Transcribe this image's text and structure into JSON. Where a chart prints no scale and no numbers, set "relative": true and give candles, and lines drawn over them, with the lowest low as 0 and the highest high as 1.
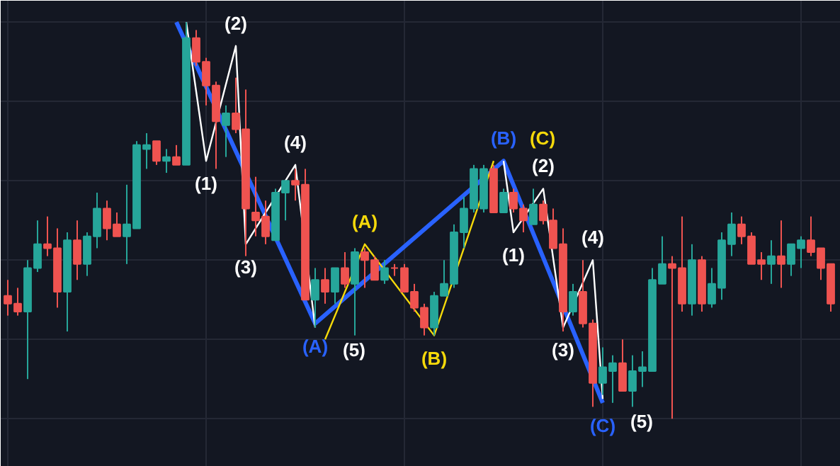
{
  "chart_data": {
    "type": "candlestick",
    "relative": true,
    "tick_labels": false,
    "grid": true,
    "categories": [
      null,
      null,
      null,
      null,
      null,
      null,
      null,
      null,
      null,
      null,
      null,
      null,
      null,
      null,
      null,
      null,
      null,
      null,
      null,
      null,
      null,
      null,
      null,
      null,
      null,
      null,
      null,
      null,
      null,
      null,
      null,
      null,
      null,
      null,
      null,
      null,
      null,
      null,
      null,
      null,
      null,
      null,
      null,
      null,
      null,
      null,
      null,
      null,
      null,
      null,
      null,
      null,
      null,
      null,
      null,
      null,
      null,
      null,
      null,
      null,
      null,
      null,
      null,
      null,
      null,
      null,
      null,
      null,
      null,
      null,
      null,
      null,
      null,
      null,
      null,
      null,
      null,
      null,
      null,
      null,
      null,
      null,
      null,
      null
    ],
    "colors": [
      "#ef5350",
      "#ef5350",
      "#26a69a",
      "#26a69a",
      "#ef5350",
      "#ef5350",
      "#26a69a",
      "#ef5350",
      "#26a69a",
      "#26a69a",
      "#ef5350",
      "#ef5350",
      "#26a69a",
      "#26a69a",
      "#26a69a",
      "#ef5350",
      "#26a69a",
      "#ef5350",
      "#26a69a",
      "#ef5350",
      "#ef5350",
      "#ef5350",
      "#26a69a",
      "#ef5350",
      "#ef5350",
      "#ef5350",
      "#ef5350",
      "#26a69a",
      "#26a69a",
      "#ef5350",
      "#ef5350",
      "#26a69a",
      "#ef5350",
      "#26a69a",
      "#ef5350",
      "#26a69a",
      "#ef5350",
      "#ef5350",
      "#26a69a",
      "#ef5350",
      "#ef5350",
      "#ef5350",
      "#ef5350",
      "#26a69a",
      "#26a69a",
      "#26a69a",
      "#26a69a",
      "#26a69a",
      "#26a69a",
      "#ef5350",
      "#26a69a",
      "#ef5350",
      "#ef5350",
      "#26a69a",
      "#ef5350",
      "#ef5350",
      "#ef5350",
      "#26a69a",
      "#ef5350",
      "#ef5350",
      "#26a69a",
      "#26a69a",
      "#ef5350",
      "#26a69a",
      "#26a69a",
      "#26a69a",
      "#26a69a",
      "#ef5350",
      "#ef5350",
      "#26a69a",
      "#ef5350",
      "#26a69a",
      "#26a69a",
      "#26a69a",
      "#ef5350",
      "#ef5350",
      "#ef5350",
      "#26a69a",
      "#ef5350",
      "#26a69a",
      "#26a69a",
      "#ef5350",
      "#ef5350",
      "#ef5350"
    ],
    "ohlc": [
      [
        0.31,
        0.35,
        0.26,
        0.29
      ],
      [
        0.29,
        0.33,
        0.26,
        0.27
      ],
      [
        0.27,
        0.4,
        0.1,
        0.38
      ],
      [
        0.38,
        0.5,
        0.37,
        0.44
      ],
      [
        0.44,
        0.51,
        0.41,
        0.43
      ],
      [
        0.43,
        0.48,
        0.28,
        0.32
      ],
      [
        0.32,
        0.47,
        0.22,
        0.45
      ],
      [
        0.45,
        0.5,
        0.35,
        0.39
      ],
      [
        0.39,
        0.47,
        0.36,
        0.46
      ],
      [
        0.46,
        0.57,
        0.43,
        0.53
      ],
      [
        0.53,
        0.55,
        0.45,
        0.48
      ],
      [
        0.49,
        0.52,
        0.46,
        0.46
      ],
      [
        0.46,
        0.59,
        0.39,
        0.49
      ],
      [
        0.48,
        0.7,
        0.48,
        0.69
      ],
      [
        0.68,
        0.72,
        0.63,
        0.69
      ],
      [
        0.7,
        0.7,
        0.64,
        0.65
      ],
      [
        0.65,
        0.68,
        0.62,
        0.66
      ],
      [
        0.66,
        0.69,
        0.64,
        0.64
      ],
      [
        0.64,
        1.0,
        0.64,
        0.96
      ],
      [
        0.96,
        0.98,
        0.89,
        0.9
      ],
      [
        0.9,
        0.91,
        0.79,
        0.84
      ],
      [
        0.84,
        0.85,
        0.63,
        0.75
      ],
      [
        0.74,
        0.79,
        0.66,
        0.77
      ],
      [
        0.77,
        0.86,
        0.72,
        0.73
      ],
      [
        0.73,
        0.83,
        0.41,
        0.53
      ],
      [
        0.52,
        0.61,
        0.46,
        0.5
      ],
      [
        0.51,
        0.55,
        0.44,
        0.46
      ],
      [
        0.45,
        0.58,
        0.45,
        0.57
      ],
      [
        0.57,
        0.6,
        0.5,
        0.6
      ],
      [
        0.6,
        0.63,
        0.55,
        0.59
      ],
      [
        0.59,
        0.63,
        0.3,
        0.3
      ],
      [
        0.3,
        0.38,
        0.23,
        0.35
      ],
      [
        0.35,
        0.38,
        0.29,
        0.32
      ],
      [
        0.32,
        0.38,
        0.29,
        0.38
      ],
      [
        0.38,
        0.42,
        0.33,
        0.34
      ],
      [
        0.34,
        0.43,
        0.21,
        0.42
      ],
      [
        0.42,
        0.43,
        0.33,
        0.4
      ],
      [
        0.4,
        0.41,
        0.35,
        0.35
      ],
      [
        0.35,
        0.4,
        0.34,
        0.38
      ],
      [
        0.38,
        0.39,
        0.36,
        0.38
      ],
      [
        0.38,
        0.39,
        0.32,
        0.32
      ],
      [
        0.32,
        0.34,
        0.27,
        0.28
      ],
      [
        0.28,
        0.29,
        0.21,
        0.23
      ],
      [
        0.23,
        0.32,
        0.21,
        0.31
      ],
      [
        0.31,
        0.4,
        0.31,
        0.34
      ],
      [
        0.34,
        0.49,
        0.33,
        0.47
      ],
      [
        0.47,
        0.56,
        0.43,
        0.53
      ],
      [
        0.53,
        0.64,
        0.52,
        0.63
      ],
      [
        0.53,
        0.64,
        0.52,
        0.63
      ],
      [
        0.63,
        0.64,
        0.52,
        0.52
      ],
      [
        0.52,
        0.58,
        0.52,
        0.57
      ],
      [
        0.57,
        0.58,
        0.52,
        0.53
      ],
      [
        0.53,
        0.54,
        0.47,
        0.5
      ],
      [
        0.49,
        0.58,
        0.49,
        0.54
      ],
      [
        0.54,
        0.55,
        0.49,
        0.5
      ],
      [
        0.5,
        0.53,
        0.43,
        0.43
      ],
      [
        0.44,
        0.48,
        0.22,
        0.27
      ],
      [
        0.27,
        0.34,
        0.26,
        0.32
      ],
      [
        0.32,
        0.4,
        0.23,
        0.24
      ],
      [
        0.24,
        0.25,
        0.03,
        0.09
      ],
      [
        0.09,
        0.18,
        0.06,
        0.13
      ],
      [
        0.12,
        0.16,
        0.04,
        0.14
      ],
      [
        0.14,
        0.2,
        0.07,
        0.07
      ],
      [
        0.07,
        0.16,
        0.03,
        0.12
      ],
      [
        0.12,
        0.17,
        0.08,
        0.13
      ],
      [
        0.12,
        0.38,
        0.12,
        0.35
      ],
      [
        0.34,
        0.46,
        0.34,
        0.39
      ],
      [
        0.39,
        0.41,
        0.0,
        0.38
      ],
      [
        0.38,
        0.51,
        0.27,
        0.29
      ],
      [
        0.29,
        0.44,
        0.26,
        0.4
      ],
      [
        0.4,
        0.41,
        0.27,
        0.29
      ],
      [
        0.29,
        0.38,
        0.28,
        0.34
      ],
      [
        0.33,
        0.47,
        0.3,
        0.45
      ],
      [
        0.44,
        0.52,
        0.41,
        0.49
      ],
      [
        0.49,
        0.51,
        0.44,
        0.46
      ],
      [
        0.46,
        0.47,
        0.39,
        0.39
      ],
      [
        0.4,
        0.42,
        0.35,
        0.39
      ],
      [
        0.39,
        0.45,
        0.34,
        0.41
      ],
      [
        0.41,
        0.5,
        0.33,
        0.39
      ],
      [
        0.39,
        0.44,
        0.36,
        0.44
      ],
      [
        0.43,
        0.46,
        0.38,
        0.45
      ],
      [
        0.45,
        0.51,
        0.41,
        0.42
      ],
      [
        0.43,
        0.43,
        0.35,
        0.38
      ],
      [
        0.39,
        0.39,
        0.27,
        0.29
      ]
    ],
    "series": [
      {
        "type": "line",
        "color": "#2962ff",
        "values": [
          null,
          null,
          null,
          null,
          null,
          null,
          null,
          null,
          null,
          null,
          null,
          null,
          null,
          null,
          null,
          null,
          null,
          1.0,
          null,
          null,
          null,
          null,
          null,
          null,
          null,
          null,
          null,
          null,
          null,
          null,
          null,
          0.24,
          null,
          null,
          null,
          null,
          null,
          null,
          null,
          null,
          null,
          null,
          null,
          null,
          null,
          null,
          null,
          null,
          null,
          null,
          0.65,
          null,
          null,
          null,
          null,
          null,
          null,
          null,
          null,
          null,
          0.04,
          null,
          null,
          null,
          null,
          null,
          null,
          null,
          null,
          null,
          null,
          null,
          null,
          null,
          null,
          null,
          null,
          null,
          null,
          null,
          null,
          null,
          null,
          null
        ]
      },
      {
        "type": "line",
        "color": "#ffffff",
        "values": [
          null,
          null,
          null,
          null,
          null,
          null,
          null,
          null,
          null,
          null,
          null,
          null,
          null,
          null,
          null,
          null,
          null,
          null,
          1.0,
          null,
          0.65,
          null,
          null,
          0.94,
          0.44,
          null,
          null,
          null,
          null,
          0.64,
          null,
          0.23,
          null,
          null,
          null,
          null,
          null,
          null,
          null,
          null,
          null,
          null,
          null,
          null,
          null,
          null,
          null,
          null,
          null,
          null,
          null,
          null,
          null,
          null,
          null,
          null,
          null,
          null,
          null,
          null,
          null,
          null,
          null,
          null,
          null,
          null,
          null,
          null,
          null,
          null,
          null,
          null,
          null,
          null,
          null,
          null,
          null,
          null,
          null,
          null,
          null,
          null,
          null,
          null
        ]
      },
      {
        "type": "line",
        "color": "#f5d90a",
        "values": [
          null,
          null,
          null,
          null,
          null,
          null,
          null,
          null,
          null,
          null,
          null,
          null,
          null,
          null,
          null,
          null,
          null,
          null,
          null,
          null,
          null,
          null,
          null,
          null,
          null,
          null,
          null,
          null,
          null,
          null,
          null,
          null,
          0.2,
          null,
          null,
          null,
          0.44,
          null,
          null,
          null,
          null,
          null,
          null,
          0.21,
          null,
          null,
          null,
          null,
          null,
          0.65,
          null,
          null,
          null,
          null,
          null,
          null,
          null,
          null,
          null,
          null,
          null,
          null,
          null,
          null,
          null,
          null,
          null,
          null,
          null,
          null,
          null,
          null,
          null,
          null,
          null,
          null,
          null,
          null,
          null,
          null,
          null,
          null,
          null,
          null
        ]
      },
      {
        "type": "line",
        "color": "#ffffff",
        "values": [
          null,
          null,
          null,
          null,
          null,
          null,
          null,
          null,
          null,
          null,
          null,
          null,
          null,
          null,
          null,
          null,
          null,
          null,
          null,
          null,
          null,
          null,
          null,
          null,
          null,
          null,
          null,
          null,
          null,
          null,
          null,
          null,
          null,
          null,
          null,
          null,
          null,
          null,
          null,
          null,
          null,
          null,
          null,
          null,
          null,
          null,
          null,
          null,
          null,
          null,
          0.65,
          0.47,
          null,
          null,
          0.58,
          null,
          0.23,
          null,
          null,
          0.4,
          0.05,
          null,
          null,
          null,
          null,
          null,
          null,
          null,
          null,
          null,
          null,
          null,
          null,
          null,
          null,
          null,
          null,
          null,
          null,
          null,
          null,
          null,
          null,
          null
        ]
      }
    ],
    "annotations": [
      "(A)",
      "(B)",
      "(C)",
      "(1)",
      "(2)",
      "(3)",
      "(4)",
      "(5)",
      "(A)",
      "(B)",
      "(C)",
      "(1)",
      "(2)",
      "(3)",
      "(4)",
      "(5)"
    ]
  }
}
